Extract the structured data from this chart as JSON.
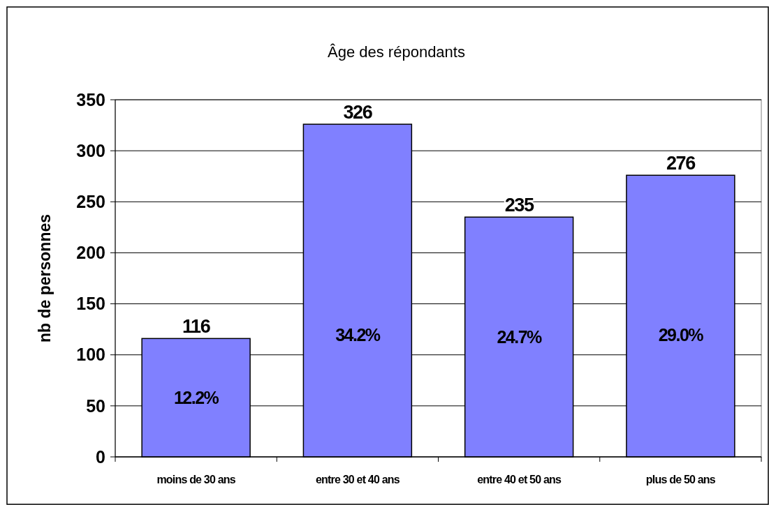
{
  "chart_data": {
    "type": "bar",
    "title": "Âge des répondants",
    "ylabel": "nb de personnes",
    "categories": [
      "moins de 30 ans",
      "entre 30 et 40 ans",
      "entre 40 et 50 ans",
      "plus de 50 ans"
    ],
    "values": [
      116,
      326,
      235,
      276
    ],
    "color": "#8080ff",
    "ylim": [
      0,
      350
    ],
    "yticks": [
      0,
      50,
      100,
      150,
      200,
      250,
      300,
      350
    ],
    "grid": "y",
    "data_labels": true,
    "annotations": [
      "12.2%",
      "34.2%",
      "24.7%",
      "29.0%"
    ]
  }
}
